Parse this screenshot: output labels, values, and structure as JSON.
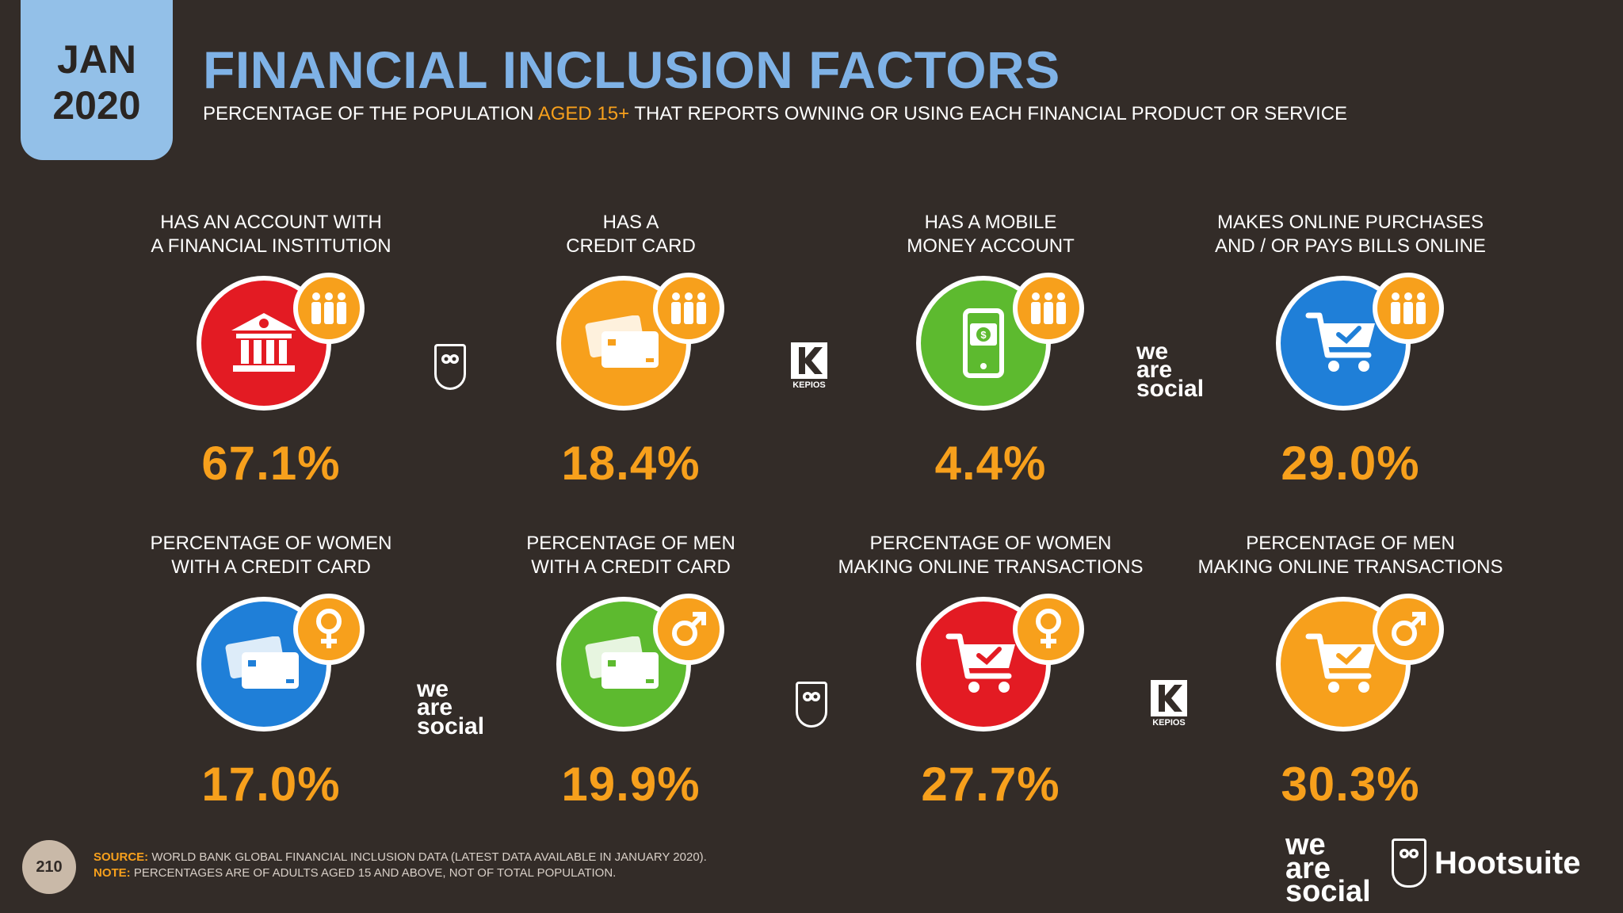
{
  "date_tab": {
    "month": "JAN",
    "year": "2020"
  },
  "header": {
    "title": "FINANCIAL INCLUSION FACTORS",
    "subtitle_a": "PERCENTAGE OF THE POPULATION",
    "subtitle_hl": "AGED 15+",
    "subtitle_b": "THAT REPORTS OWNING OR USING EACH FINANCIAL PRODUCT OR SERVICE"
  },
  "colors": {
    "red": "#e31b23",
    "orange": "#f7a01c",
    "green": "#5dba2f",
    "blue": "#1f7fd8",
    "title": "#7fb2e6",
    "background": "#332c28"
  },
  "metrics": [
    {
      "line1": "HAS AN ACCOUNT WITH",
      "line2": "A FINANCIAL INSTITUTION",
      "value": "67.1%",
      "icon": "bank-icon",
      "badge": "people-icon"
    },
    {
      "line1": "HAS A",
      "line2": "CREDIT CARD",
      "value": "18.4%",
      "icon": "credit-card-icon",
      "badge": "people-icon"
    },
    {
      "line1": "HAS A MOBILE",
      "line2": "MONEY ACCOUNT",
      "value": "4.4%",
      "icon": "mobile-money-icon",
      "badge": "people-icon"
    },
    {
      "line1": "MAKES ONLINE PURCHASES",
      "line2": "AND / OR PAYS BILLS ONLINE",
      "value": "29.0%",
      "icon": "shopping-cart-icon",
      "badge": "people-icon"
    },
    {
      "line1": "PERCENTAGE OF WOMEN",
      "line2": "WITH A CREDIT CARD",
      "value": "17.0%",
      "icon": "credit-card-icon",
      "badge": "female-icon"
    },
    {
      "line1": "PERCENTAGE OF MEN",
      "line2": "WITH A CREDIT CARD",
      "value": "19.9%",
      "icon": "credit-card-icon",
      "badge": "male-icon"
    },
    {
      "line1": "PERCENTAGE OF WOMEN",
      "line2": "MAKING ONLINE TRANSACTIONS",
      "value": "27.7%",
      "icon": "shopping-cart-icon",
      "badge": "female-icon"
    },
    {
      "line1": "PERCENTAGE OF MEN",
      "line2": "MAKING ONLINE TRANSACTIONS",
      "value": "30.3%",
      "icon": "shopping-cart-icon",
      "badge": "male-icon"
    }
  ],
  "logos": {
    "we": "we",
    "are": "are",
    "social": "social",
    "kepios": "KEPIOS",
    "hootsuite": "Hootsuite"
  },
  "footer": {
    "page_number": "210",
    "source_key": "SOURCE:",
    "source_text": "WORLD BANK GLOBAL FINANCIAL INCLUSION DATA (LATEST DATA AVAILABLE IN JANUARY 2020).",
    "note_key": "NOTE:",
    "note_text": "PERCENTAGES ARE OF ADULTS AGED 15 AND ABOVE, NOT OF TOTAL POPULATION."
  }
}
